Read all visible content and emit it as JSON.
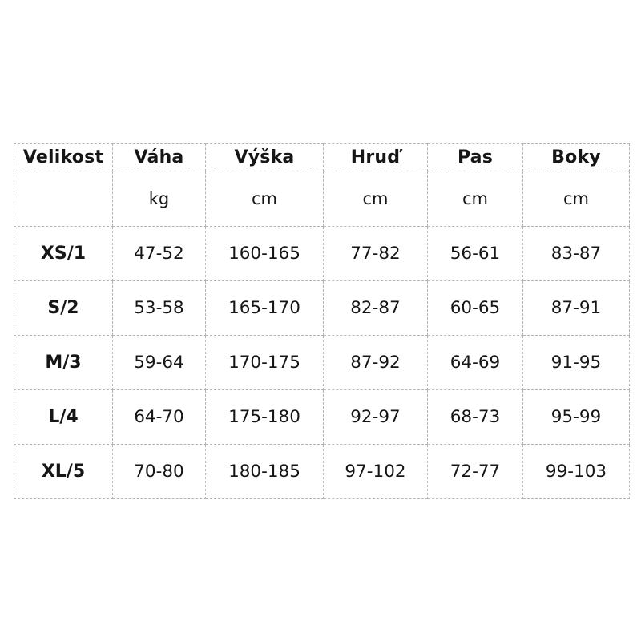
{
  "chart_data": {
    "type": "table",
    "columns": [
      "Velikost",
      "Váha",
      "Výška",
      "Hruď",
      "Pas",
      "Boky"
    ],
    "units_row": [
      "",
      "kg",
      "cm",
      "cm",
      "cm",
      "cm"
    ],
    "rows": [
      [
        "XS/1",
        "47-52",
        "160-165",
        "77-82",
        "56-61",
        "83-87"
      ],
      [
        "S/2",
        "53-58",
        "165-170",
        "82-87",
        "60-65",
        "87-91"
      ],
      [
        "M/3",
        "59-64",
        "170-175",
        "87-92",
        "64-69",
        "91-95"
      ],
      [
        "L/4",
        "64-70",
        "175-180",
        "92-97",
        "68-73",
        "95-99"
      ],
      [
        "XL/5",
        "70-80",
        "180-185",
        "97-102",
        "72-77",
        "99-103"
      ]
    ],
    "layout_hints": {
      "grid": "dashed",
      "header_bold": true,
      "first_column_bold": true
    }
  },
  "style": {
    "border_color": "#b5b5b5",
    "text_color": "#161616",
    "background": "#ffffff"
  }
}
